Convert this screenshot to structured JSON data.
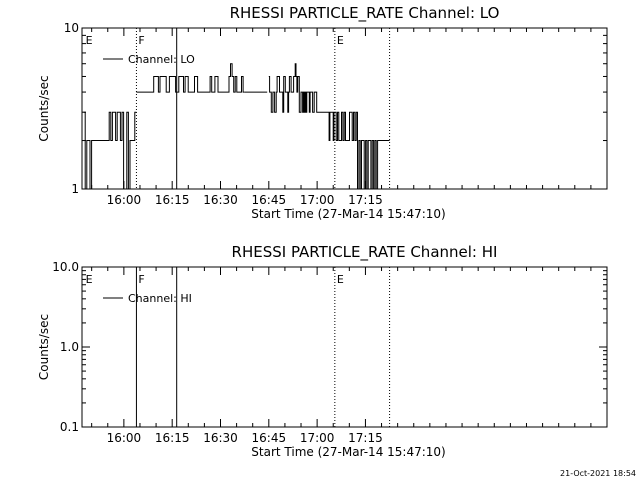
{
  "chart_data": [
    {
      "type": "line",
      "title": "RHESSI PARTICLE_RATE Channel: LO",
      "xlabel": "Start Time (27-Mar-14 15:47:10)",
      "ylabel": "Counts/sec",
      "x_unit": "minutes since start time",
      "xlim": [
        0,
        163
      ],
      "ylim": [
        1,
        10
      ],
      "yscale": "log",
      "xticks": [
        {
          "v": 13,
          "label": "16:00"
        },
        {
          "v": 28,
          "label": "16:15"
        },
        {
          "v": 43,
          "label": "16:30"
        },
        {
          "v": 58,
          "label": "16:45"
        },
        {
          "v": 73,
          "label": "17:00"
        },
        {
          "v": 88,
          "label": "17:15"
        }
      ],
      "yticks": [
        {
          "v": 1,
          "label": "1"
        },
        {
          "v": 10,
          "label": "10"
        }
      ],
      "legend": {
        "label": "Channel: LO",
        "position": "top-left"
      },
      "markers": [
        {
          "x": 0.5,
          "label": "E",
          "style": "none"
        },
        {
          "x": 16.9,
          "label": "F",
          "style": "dotted"
        },
        {
          "x": 29.4,
          "label": "",
          "style": "solid"
        },
        {
          "x": 78.5,
          "label": "E",
          "style": "dotted"
        },
        {
          "x": 95.5,
          "label": "",
          "style": "dotted"
        }
      ],
      "series": [
        {
          "name": "Channel: LO",
          "segments": [
            {
              "x0": 0.5,
              "x1": 16.9,
              "values": [
                3,
                1,
                2,
                2,
                1,
                2,
                2,
                2,
                2,
                2,
                2,
                2,
                2,
                2,
                2,
                2,
                3,
                2,
                3,
                3,
                2,
                3,
                3,
                2,
                3,
                1,
                1,
                3,
                1,
                2,
                2,
                2,
                3
              ]
            },
            {
              "x0": 16.9,
              "x1": 50.5,
              "values": [
                4,
                4,
                4,
                4,
                4,
                4,
                4,
                4,
                4,
                4,
                4,
                5,
                5,
                5,
                4,
                5,
                5,
                5,
                5,
                4,
                4,
                5,
                5,
                5,
                5,
                4,
                4,
                5,
                5,
                5,
                4,
                5,
                5,
                4,
                4,
                4,
                4,
                5,
                5,
                4,
                4,
                4,
                4,
                4,
                4,
                4,
                4,
                5,
                4,
                4,
                5,
                5,
                4,
                4,
                4,
                4,
                4,
                4,
                4,
                5,
                6,
                5,
                4,
                5,
                4,
                4,
                4,
                5,
                4
              ]
            },
            {
              "x0": 50.5,
              "x1": 57.5,
              "values": [
                4,
                4,
                4,
                4,
                4,
                4,
                4,
                4,
                4,
                4,
                4,
                4,
                4,
                4,
                4
              ]
            },
            {
              "x0": 58.0,
              "x1": 78.5,
              "values": [
                5,
                4,
                4,
                3,
                3,
                4,
                4,
                3,
                3,
                4,
                5,
                5,
                5,
                4,
                4,
                4,
                4,
                3,
                5,
                5,
                4,
                4,
                4,
                3,
                4,
                5,
                5,
                4,
                4,
                4,
                5,
                5,
                6,
                5,
                4,
                5,
                5,
                3,
                3,
                4,
                4,
                3,
                4,
                3,
                4,
                3,
                4,
                4,
                4,
                3,
                4,
                4,
                4,
                3,
                3,
                4,
                4,
                4,
                3,
                3,
                3,
                3,
                3,
                3,
                3,
                3,
                3,
                3,
                3,
                3,
                3,
                3,
                3,
                2,
                3,
                3,
                3,
                3,
                2,
                3
              ]
            },
            {
              "x0": 78.5,
              "x1": 95.5,
              "values": [
                3,
                2,
                3,
                2,
                2,
                3,
                2,
                3,
                2,
                2,
                2,
                3,
                3,
                2,
                3,
                2,
                3,
                1,
                2,
                1,
                2,
                2,
                1,
                2,
                1,
                2,
                2,
                1,
                2,
                1,
                2,
                1,
                2,
                2,
                2,
                2,
                2,
                2,
                2,
                2,
                2
              ]
            }
          ]
        }
      ]
    },
    {
      "type": "line",
      "title": "RHESSI PARTICLE_RATE Channel: HI",
      "xlabel": "Start Time (27-Mar-14 15:47:10)",
      "ylabel": "Counts/sec",
      "x_unit": "minutes since start time",
      "xlim": [
        0,
        163
      ],
      "ylim": [
        0.1,
        10.0
      ],
      "yscale": "log",
      "xticks": [
        {
          "v": 13,
          "label": "16:00"
        },
        {
          "v": 28,
          "label": "16:15"
        },
        {
          "v": 43,
          "label": "16:30"
        },
        {
          "v": 58,
          "label": "16:45"
        },
        {
          "v": 73,
          "label": "17:00"
        },
        {
          "v": 88,
          "label": "17:15"
        }
      ],
      "yticks": [
        {
          "v": 0.1,
          "label": "0.1"
        },
        {
          "v": 1.0,
          "label": "1.0"
        },
        {
          "v": 10.0,
          "label": "10.0"
        }
      ],
      "legend": {
        "label": "Channel: HI",
        "position": "top-left"
      },
      "markers": [
        {
          "x": 0.5,
          "label": "E",
          "style": "none"
        },
        {
          "x": 16.9,
          "label": "F",
          "style": "solid"
        },
        {
          "x": 29.4,
          "label": "",
          "style": "solid"
        },
        {
          "x": 78.5,
          "label": "E",
          "style": "dotted"
        },
        {
          "x": 95.5,
          "label": "",
          "style": "dotted"
        }
      ],
      "series": [
        {
          "name": "Channel: HI",
          "segments": []
        }
      ]
    }
  ],
  "footer": {
    "timestamp": "21-Oct-2021 18:54"
  }
}
